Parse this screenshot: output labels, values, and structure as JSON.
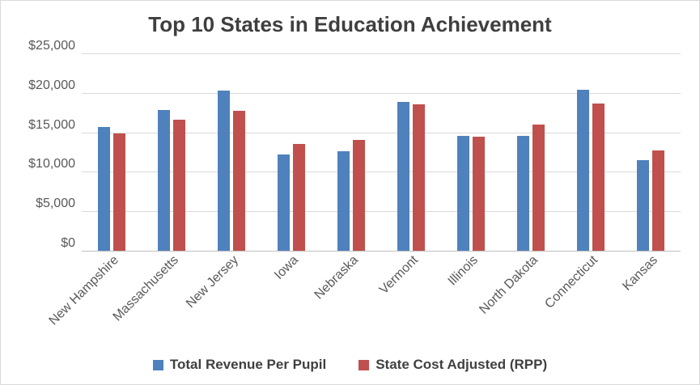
{
  "chart_data": {
    "type": "bar",
    "title": "Top 10 States in Education Achievement",
    "categories": [
      "New Hampshire",
      "Massachusetts",
      "New Jersey",
      "Iowa",
      "Nebraska",
      "Vermont",
      "Illinois",
      "North Dakota",
      "Connecticut",
      "Kansas"
    ],
    "series": [
      {
        "name": "Total Revenue Per Pupil",
        "color": "#4f81bd",
        "values": [
          15800,
          17900,
          20400,
          12300,
          12700,
          19000,
          14700,
          14700,
          20500,
          11600
        ]
      },
      {
        "name": "State Cost Adjusted (RPP)",
        "color": "#c0504d",
        "values": [
          15000,
          16700,
          17800,
          13600,
          14100,
          18700,
          14600,
          16100,
          18800,
          12800
        ]
      }
    ],
    "ylabel": "",
    "xlabel": "",
    "ylim": [
      0,
      25000
    ],
    "ytick_step": 5000,
    "ytick_labels": [
      "$0",
      "$5,000",
      "$10,000",
      "$15,000",
      "$20,000",
      "$25,000"
    ],
    "grid": true,
    "legend_position": "bottom"
  }
}
